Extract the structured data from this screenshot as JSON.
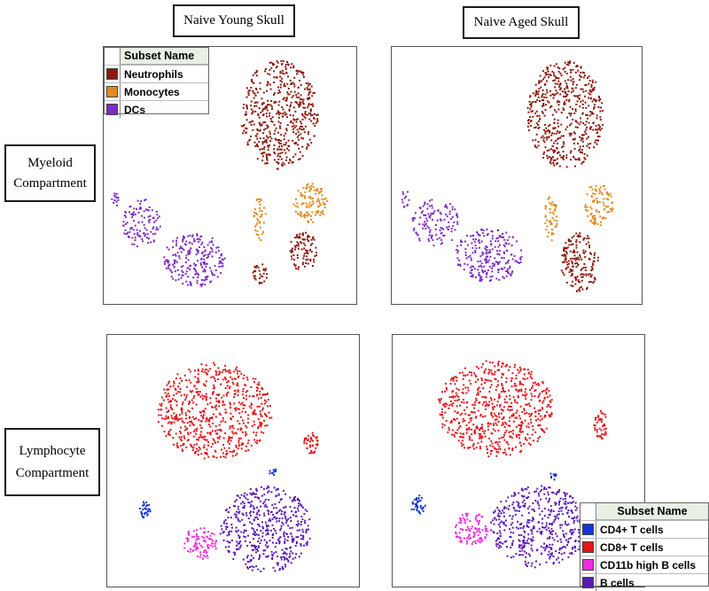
{
  "column_titles": {
    "young": "Naive Young Skull",
    "aged": "Naive Aged Skull"
  },
  "row_titles": {
    "myeloid": [
      "Myeloid",
      "Compartment"
    ],
    "lymphocyte": [
      "Lymphocyte",
      "Compartment"
    ]
  },
  "legends": {
    "myeloid": {
      "title": "Subset Name",
      "items": [
        {
          "label": "Neutrophils",
          "color": "#8b1a0e"
        },
        {
          "label": "Monocytes",
          "color": "#e08a1c"
        },
        {
          "label": "DCs",
          "color": "#7b2cc0"
        }
      ]
    },
    "lymphocyte": {
      "title": "Subset Name",
      "items": [
        {
          "label": "CD4+ T cells",
          "color": "#1432d8"
        },
        {
          "label": "CD8+ T cells",
          "color": "#e3141a"
        },
        {
          "label": "CD11b high B cells",
          "color": "#ee2ce0"
        },
        {
          "label": "B cells",
          "color": "#5a1ab0"
        }
      ]
    }
  },
  "chart_data": [
    {
      "type": "scatter",
      "title": "Naive Young Skull - Myeloid Compartment",
      "xlim": [
        0,
        100
      ],
      "ylim": [
        0,
        100
      ],
      "clusters": [
        {
          "subset": "Neutrophils",
          "cx": 70,
          "cy": 75,
          "rx": 16,
          "ry": 22,
          "count": 520
        },
        {
          "subset": "Neutrophils",
          "cx": 80,
          "cy": 19,
          "rx": 6,
          "ry": 9,
          "count": 90
        },
        {
          "subset": "Neutrophils",
          "cx": 62,
          "cy": 10,
          "rx": 3,
          "ry": 5,
          "count": 30
        },
        {
          "subset": "Monocytes",
          "cx": 83,
          "cy": 39,
          "rx": 7,
          "ry": 8,
          "count": 110
        },
        {
          "subset": "Monocytes",
          "cx": 62,
          "cy": 33,
          "rx": 2.5,
          "ry": 9,
          "count": 40
        },
        {
          "subset": "DCs",
          "cx": 35,
          "cy": 16,
          "rx": 13,
          "ry": 11,
          "count": 220
        },
        {
          "subset": "DCs",
          "cx": 13,
          "cy": 31,
          "rx": 8,
          "ry": 10,
          "count": 110
        },
        {
          "subset": "DCs",
          "cx": 2,
          "cy": 41,
          "rx": 1.5,
          "ry": 4,
          "count": 12
        }
      ]
    },
    {
      "type": "scatter",
      "title": "Naive Aged Skull - Myeloid Compartment",
      "xlim": [
        0,
        100
      ],
      "ylim": [
        0,
        100
      ],
      "clusters": [
        {
          "subset": "Neutrophils",
          "cx": 70,
          "cy": 75,
          "rx": 16,
          "ry": 22,
          "count": 520
        },
        {
          "subset": "Neutrophils",
          "cx": 76,
          "cy": 15,
          "rx": 8,
          "ry": 12,
          "count": 170
        },
        {
          "subset": "Monocytes",
          "cx": 84,
          "cy": 39,
          "rx": 6,
          "ry": 9,
          "count": 90
        },
        {
          "subset": "Monocytes",
          "cx": 64,
          "cy": 33,
          "rx": 3,
          "ry": 9,
          "count": 45
        },
        {
          "subset": "DCs",
          "cx": 38,
          "cy": 18,
          "rx": 14,
          "ry": 11,
          "count": 230
        },
        {
          "subset": "DCs",
          "cx": 16,
          "cy": 31,
          "rx": 10,
          "ry": 10,
          "count": 120
        },
        {
          "subset": "DCs",
          "cx": 3,
          "cy": 41,
          "rx": 2,
          "ry": 4,
          "count": 12
        }
      ]
    },
    {
      "type": "scatter",
      "title": "Naive Young Skull - Lymphocyte Compartment",
      "xlim": [
        0,
        100
      ],
      "ylim": [
        0,
        100
      ],
      "clusters": [
        {
          "subset": "CD8+ T cells",
          "cx": 42,
          "cy": 71,
          "rx": 24,
          "ry": 20,
          "count": 640
        },
        {
          "subset": "CD8+ T cells",
          "cx": 82,
          "cy": 58,
          "rx": 3,
          "ry": 5,
          "count": 40
        },
        {
          "subset": "B cells",
          "cx": 63,
          "cy": 22,
          "rx": 19,
          "ry": 18,
          "count": 480
        },
        {
          "subset": "CD11b high B cells",
          "cx": 36,
          "cy": 16,
          "rx": 7,
          "ry": 7,
          "count": 90
        },
        {
          "subset": "CD4+ T cells",
          "cx": 13,
          "cy": 30,
          "rx": 2.5,
          "ry": 3.5,
          "count": 30
        },
        {
          "subset": "CD4+ T cells",
          "cx": 66,
          "cy": 46,
          "rx": 1.5,
          "ry": 2,
          "count": 10
        }
      ]
    },
    {
      "type": "scatter",
      "title": "Naive Aged Skull - Lymphocyte Compartment",
      "xlim": [
        0,
        100
      ],
      "ylim": [
        0,
        100
      ],
      "clusters": [
        {
          "subset": "CD8+ T cells",
          "cx": 40,
          "cy": 72,
          "rx": 24,
          "ry": 20,
          "count": 640
        },
        {
          "subset": "CD8+ T cells",
          "cx": 84,
          "cy": 65,
          "rx": 3,
          "ry": 6,
          "count": 45
        },
        {
          "subset": "B cells",
          "cx": 58,
          "cy": 23,
          "rx": 20,
          "ry": 17,
          "count": 480
        },
        {
          "subset": "CD11b high B cells",
          "cx": 30,
          "cy": 22,
          "rx": 7,
          "ry": 7,
          "count": 100
        },
        {
          "subset": "CD4+ T cells",
          "cx": 8,
          "cy": 32,
          "rx": 3,
          "ry": 4,
          "count": 35
        },
        {
          "subset": "CD4+ T cells",
          "cx": 64,
          "cy": 44,
          "rx": 1.5,
          "ry": 2,
          "count": 10
        }
      ]
    }
  ]
}
